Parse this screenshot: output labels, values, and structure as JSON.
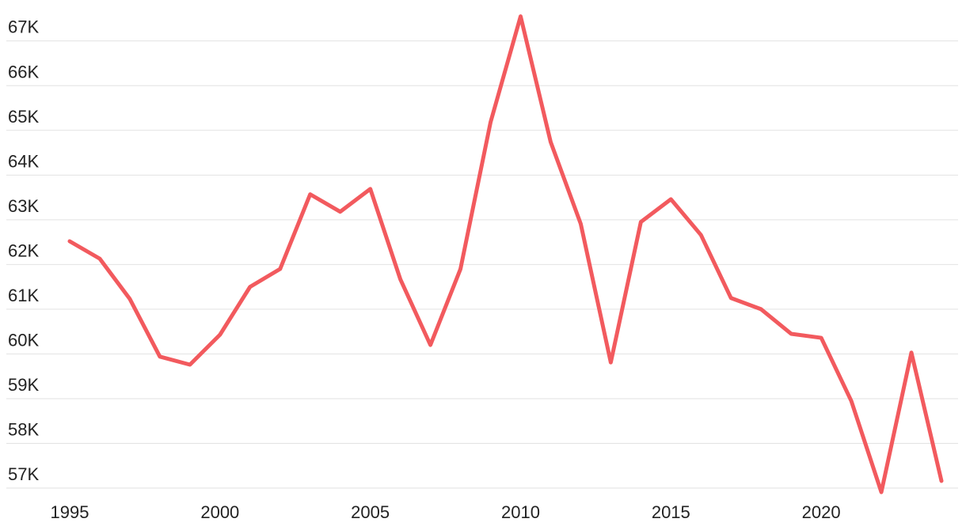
{
  "chart_data": {
    "type": "line",
    "x": [
      1995,
      1996,
      1997,
      1998,
      1999,
      2000,
      2001,
      2002,
      2003,
      2004,
      2005,
      2006,
      2007,
      2008,
      2009,
      2010,
      2011,
      2012,
      2013,
      2014,
      2015,
      2016,
      2017,
      2018,
      2019,
      2020,
      2021,
      2022,
      2023,
      2024
    ],
    "series": [
      {
        "color": "#f25a5e",
        "values": [
          62520,
          62130,
          61230,
          59940,
          59760,
          60430,
          61500,
          61900,
          63570,
          63180,
          63690,
          61670,
          60200,
          61900,
          65180,
          67550,
          64740,
          62910,
          59810,
          62950,
          63460,
          62660,
          61250,
          61000,
          60450,
          60360,
          58950,
          56910,
          60030,
          57160
        ]
      }
    ],
    "xlim": [
      1995,
      2024
    ],
    "xticks": [
      1995,
      2000,
      2005,
      2010,
      2015,
      2020
    ],
    "ylim": [
      56770,
      67650
    ],
    "yticks": [
      {
        "value": 57000,
        "label": "57K"
      },
      {
        "value": 58000,
        "label": "58K"
      },
      {
        "value": 59000,
        "label": "59K"
      },
      {
        "value": 60000,
        "label": "60K"
      },
      {
        "value": 61000,
        "label": "61K"
      },
      {
        "value": 62000,
        "label": "62K"
      },
      {
        "value": 63000,
        "label": "63K"
      },
      {
        "value": 64000,
        "label": "64K"
      },
      {
        "value": 65000,
        "label": "65K"
      },
      {
        "value": 66000,
        "label": "66K"
      },
      {
        "value": 67000,
        "label": "67K"
      }
    ],
    "grid": true
  }
}
